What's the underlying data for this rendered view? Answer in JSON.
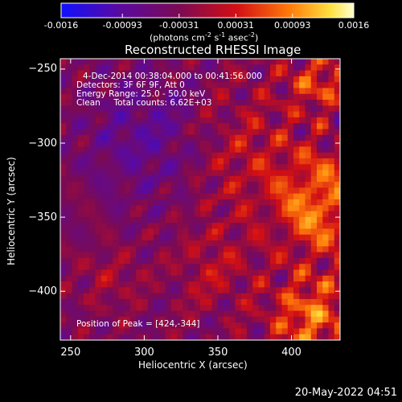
{
  "chart_data": {
    "type": "heatmap",
    "title": "Reconstructed RHESSI Image",
    "xlabel": "Heliocentric X (arcsec)",
    "ylabel": "Heliocentric Y (arcsec)",
    "xlim": [
      243,
      433
    ],
    "ylim": [
      -433,
      -243
    ],
    "x_ticks": [
      250,
      300,
      350,
      400
    ],
    "y_ticks": [
      -250,
      -300,
      -350,
      -400
    ],
    "colorbar": {
      "range": [
        -0.0016,
        0.0016
      ],
      "tick_labels": [
        "-0.0016",
        "-0.00093",
        "-0.00031",
        "0.00031",
        "0.00093",
        "0.0016"
      ],
      "tick_values": [
        -0.0016,
        -0.00093,
        -0.00031,
        0.00031,
        0.00093,
        0.0016
      ],
      "unit_label": "(photons cm-2 s-1 asec-2)",
      "colors": [
        "#1010ff",
        "#5a0aa0",
        "#7a0a55",
        "#d20f14",
        "#ff7a0a",
        "#ffe040",
        "#ffffd0"
      ]
    },
    "info_lines": [
      "4-Dec-2014 00:38:04.000 to 00:41:56.000",
      "Detectors: 3F 6F 9F, Att 0",
      "Energy Range: 25.0 - 50.0 keV",
      "Clean     Total counts: 6.62E+03"
    ],
    "peak_label": "Position of Peak = [424,-344]",
    "peak": [
      424,
      -344
    ],
    "grid": false
  },
  "footer": {
    "timestamp": "20-May-2022 04:51"
  }
}
